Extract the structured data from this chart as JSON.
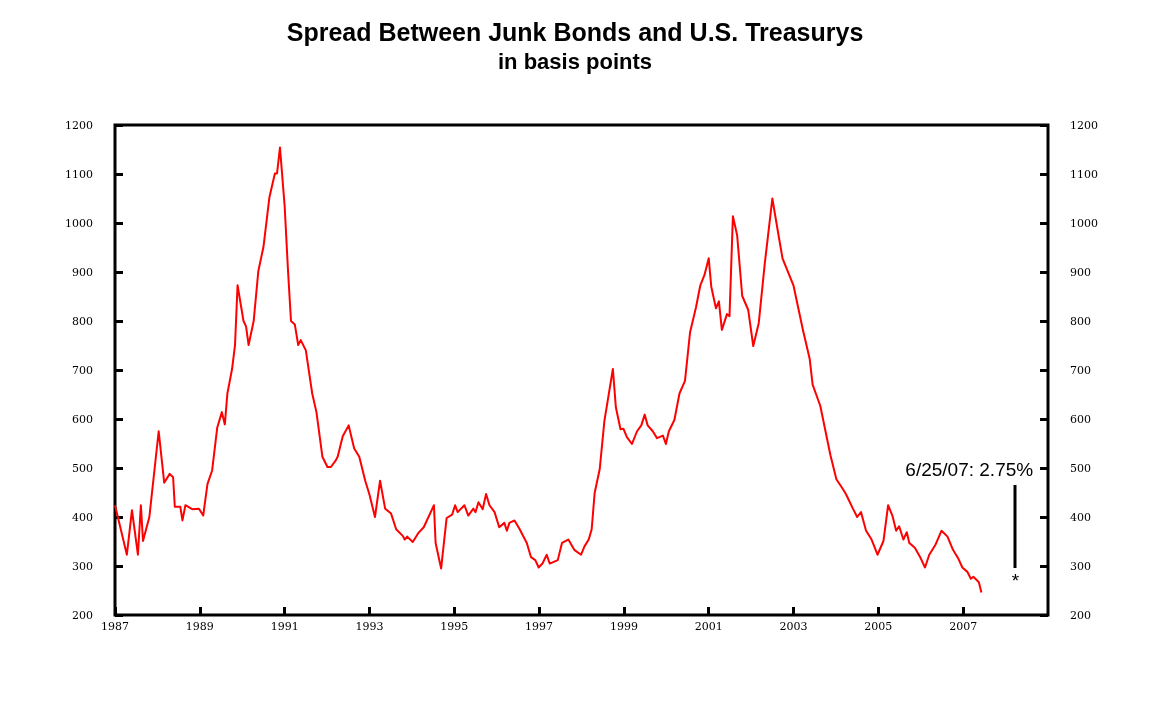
{
  "chart_data": {
    "type": "line",
    "title": "Spread Between Junk Bonds and U.S. Treasurys",
    "subtitle": "in basis points",
    "annotations": [
      "6/25/07: 2.75%",
      "*"
    ],
    "series": [
      {
        "color": "#ff0000",
        "x": [
          1987.0,
          1987.28,
          1987.4,
          1987.54,
          1987.61,
          1987.66,
          1987.81,
          1988.03,
          1988.16,
          1988.29,
          1988.37,
          1988.41,
          1988.54,
          1988.59,
          1988.66,
          1988.82,
          1988.98,
          1989.08,
          1989.18,
          1989.29,
          1989.41,
          1989.52,
          1989.59,
          1989.65,
          1989.76,
          1989.83,
          1989.89,
          1990.03,
          1990.09,
          1990.15,
          1990.27,
          1990.38,
          1990.5,
          1990.64,
          1990.77,
          1990.82,
          1990.89,
          1991.0,
          1991.08,
          1991.15,
          1991.24,
          1991.32,
          1991.38,
          1991.5,
          1991.65,
          1991.75,
          1991.89,
          1992.01,
          1992.09,
          1992.21,
          1992.25,
          1992.37,
          1992.51,
          1992.64,
          1992.76,
          1992.9,
          1993.0,
          1993.13,
          1993.25,
          1993.37,
          1993.51,
          1993.63,
          1993.79,
          1993.83,
          1993.89,
          1994.02,
          1994.15,
          1994.28,
          1994.52,
          1994.56,
          1994.69,
          1994.82,
          1994.95,
          1995.02,
          1995.08,
          1995.24,
          1995.33,
          1995.45,
          1995.5,
          1995.57,
          1995.67,
          1995.75,
          1995.83,
          1995.95,
          1996.06,
          1996.18,
          1996.24,
          1996.3,
          1996.42,
          1996.53,
          1996.71,
          1996.81,
          1996.91,
          1996.99,
          1997.08,
          1997.18,
          1997.25,
          1997.44,
          1997.54,
          1997.69,
          1997.83,
          1997.99,
          1998.07,
          1998.17,
          1998.24,
          1998.31,
          1998.43,
          1998.54,
          1998.74,
          1998.81,
          1998.92,
          1998.99,
          1999.07,
          1999.19,
          1999.31,
          1999.41,
          1999.49,
          1999.56,
          1999.68,
          1999.78,
          1999.92,
          1999.99,
          2000.06,
          2000.19,
          2000.31,
          2000.44,
          2000.56,
          2000.7,
          2000.8,
          2000.9,
          2001.0,
          2001.06,
          2001.17,
          2001.24,
          2001.31,
          2001.43,
          2001.49,
          2001.57,
          2001.67,
          2001.79,
          2001.93,
          2002.05,
          2002.18,
          2002.32,
          2002.5,
          2002.65,
          2002.74,
          2003.0,
          2003.22,
          2003.38,
          2003.45,
          2003.63,
          2003.87,
          2004.01,
          2004.17,
          2004.24,
          2004.4,
          2004.5,
          2004.59,
          2004.71,
          2004.84,
          2004.98,
          2005.12,
          2005.23,
          2005.33,
          2005.42,
          2005.49,
          2005.59,
          2005.67,
          2005.73,
          2005.86,
          2005.98,
          2006.1,
          2006.2,
          2006.35,
          2006.49,
          2006.63,
          2006.76,
          2006.88,
          2006.98,
          2007.1,
          2007.18,
          2007.24,
          2007.37,
          2007.43
        ],
        "values": [
          424,
          323,
          414,
          323,
          424,
          351,
          400,
          575,
          470,
          488,
          481,
          421,
          421,
          393,
          424,
          416,
          417,
          403,
          467,
          495,
          582,
          614,
          589,
          652,
          702,
          751,
          873,
          800,
          789,
          751,
          800,
          902,
          951,
          1052,
          1101,
          1101,
          1154,
          1035,
          902,
          800,
          793,
          751,
          761,
          740,
          652,
          614,
          523,
          502,
          502,
          516,
          523,
          565,
          587,
          540,
          523,
          474,
          446,
          400,
          474,
          417,
          407,
          375,
          361,
          354,
          360,
          349,
          367,
          379,
          424,
          347,
          295,
          398,
          405,
          424,
          410,
          424,
          403,
          417,
          410,
          430,
          416,
          447,
          424,
          410,
          379,
          388,
          372,
          388,
          393,
          377,
          347,
          318,
          312,
          297,
          305,
          323,
          305,
          312,
          347,
          354,
          333,
          323,
          340,
          354,
          375,
          449,
          498,
          596,
          702,
          624,
          579,
          580,
          563,
          549,
          575,
          587,
          609,
          587,
          575,
          561,
          566,
          549,
          575,
          598,
          652,
          678,
          777,
          828,
          872,
          894,
          928,
          870,
          826,
          840,
          782,
          814,
          810,
          1014,
          975,
          851,
          823,
          749,
          796,
          916,
          1050,
          973,
          928,
          872,
          782,
          723,
          670,
          627,
          526,
          477,
          456,
          446,
          417,
          400,
          410,
          372,
          354,
          323,
          351,
          424,
          403,
          372,
          381,
          354,
          369,
          347,
          337,
          319,
          297,
          323,
          344,
          372,
          360,
          333,
          316,
          297,
          288,
          274,
          278,
          267,
          246
        ]
      }
    ],
    "xlim": [
      1987,
      2009
    ],
    "xticks": [
      1987,
      1989,
      1991,
      1993,
      1995,
      1997,
      1999,
      2001,
      2003,
      2005,
      2007
    ],
    "ylim": [
      200,
      1200
    ],
    "yticks": [
      200,
      300,
      400,
      500,
      600,
      700,
      800,
      900,
      1000,
      1100,
      1200
    ],
    "y2lim": [
      200,
      1200
    ],
    "y2ticks": [
      200,
      300,
      400,
      500,
      600,
      700,
      800,
      900,
      1000,
      1100,
      1200
    ],
    "grid": false,
    "marker": "none",
    "line_style": "solid"
  }
}
